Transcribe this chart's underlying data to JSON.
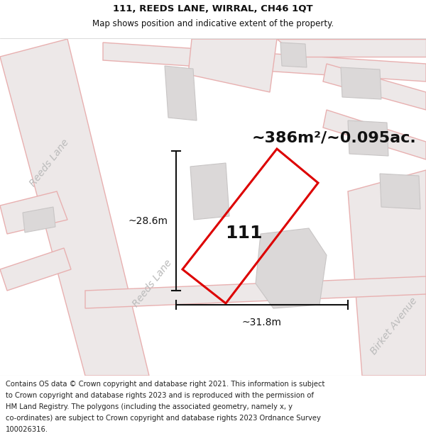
{
  "title_line1": "111, REEDS LANE, WIRRAL, CH46 1QT",
  "title_line2": "Map shows position and indicative extent of the property.",
  "area_label": "~386m²/~0.095ac.",
  "property_number": "111",
  "dim_width": "~31.8m",
  "dim_height": "~28.6m",
  "road_label_1": "Reeds Lane",
  "road_label_2": "Reeds Lane",
  "road_label_3": "Birket Avenue",
  "footer_lines": [
    "Contains OS data © Crown copyright and database right 2021. This information is subject",
    "to Crown copyright and database rights 2023 and is reproduced with the permission of",
    "HM Land Registry. The polygons (including the associated geometry, namely x, y",
    "co-ordinates) are subject to Crown copyright and database rights 2023 Ordnance Survey",
    "100026316."
  ],
  "bg_color": "#ffffff",
  "map_bg": "#f5f3f3",
  "road_fill": "#ede8e8",
  "road_line": "#e8b0b0",
  "building_fill": "#dbd8d8",
  "building_edge": "#c8c5c5",
  "property_line": "#dd0000",
  "dim_line_color": "#111111",
  "title_fontsize": 9.5,
  "subtitle_fontsize": 8.5,
  "area_fontsize": 16,
  "number_fontsize": 18,
  "dim_fontsize": 10,
  "road_fontsize": 10,
  "footer_fontsize": 7.2
}
